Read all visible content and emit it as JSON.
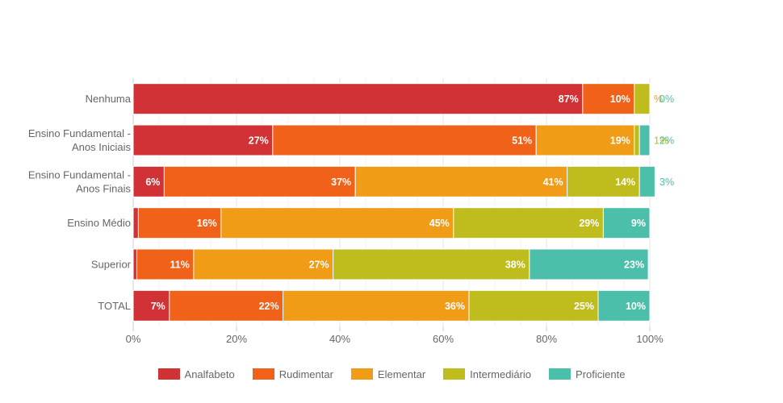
{
  "chart_data": {
    "type": "bar",
    "orientation": "horizontal",
    "stacked": "percent",
    "categories": [
      [
        "Nenhuma"
      ],
      [
        "Ensino Fundamental -",
        "Anos Iniciais"
      ],
      [
        "Ensino Fundamental -",
        "Anos Finais"
      ],
      [
        "Ensino Médio"
      ],
      [
        "Superior"
      ],
      [
        "TOTAL"
      ]
    ],
    "series": [
      {
        "name": "Analfabeto",
        "color": "#d13236",
        "values": [
          87,
          27,
          6,
          1,
          0.7,
          7
        ],
        "labels": [
          "87%",
          "27%",
          "6%",
          "",
          "",
          "7%"
        ]
      },
      {
        "name": "Rudimentar",
        "color": "#f0611a",
        "values": [
          10,
          51,
          37,
          16,
          11,
          22
        ],
        "labels": [
          "10%",
          "51%",
          "37%",
          "16%",
          "11%",
          "22%"
        ]
      },
      {
        "name": "Elementar",
        "color": "#f19c17",
        "values": [
          0,
          19,
          41,
          45,
          27,
          36
        ],
        "labels": [
          "%",
          "19%",
          "41%",
          "45%",
          "27%",
          "36%"
        ]
      },
      {
        "name": "Intermediário",
        "color": "#bfbc1e",
        "values": [
          3,
          1,
          14,
          29,
          38,
          25
        ],
        "labels": [
          "",
          "1%",
          "14%",
          "29%",
          "38%",
          "25%"
        ]
      },
      {
        "name": "Proficiente",
        "color": "#4bbfa9",
        "values": [
          0,
          2,
          3,
          9,
          23,
          10
        ],
        "labels": [
          "0%",
          "2%",
          "3%",
          "9%",
          "23%",
          "10%"
        ]
      }
    ],
    "xlim": [
      0,
      100
    ],
    "x_ticks": [
      "0%",
      "20%",
      "40%",
      "60%",
      "80%",
      "100%"
    ],
    "grid": true,
    "legend_position": "bottom"
  }
}
